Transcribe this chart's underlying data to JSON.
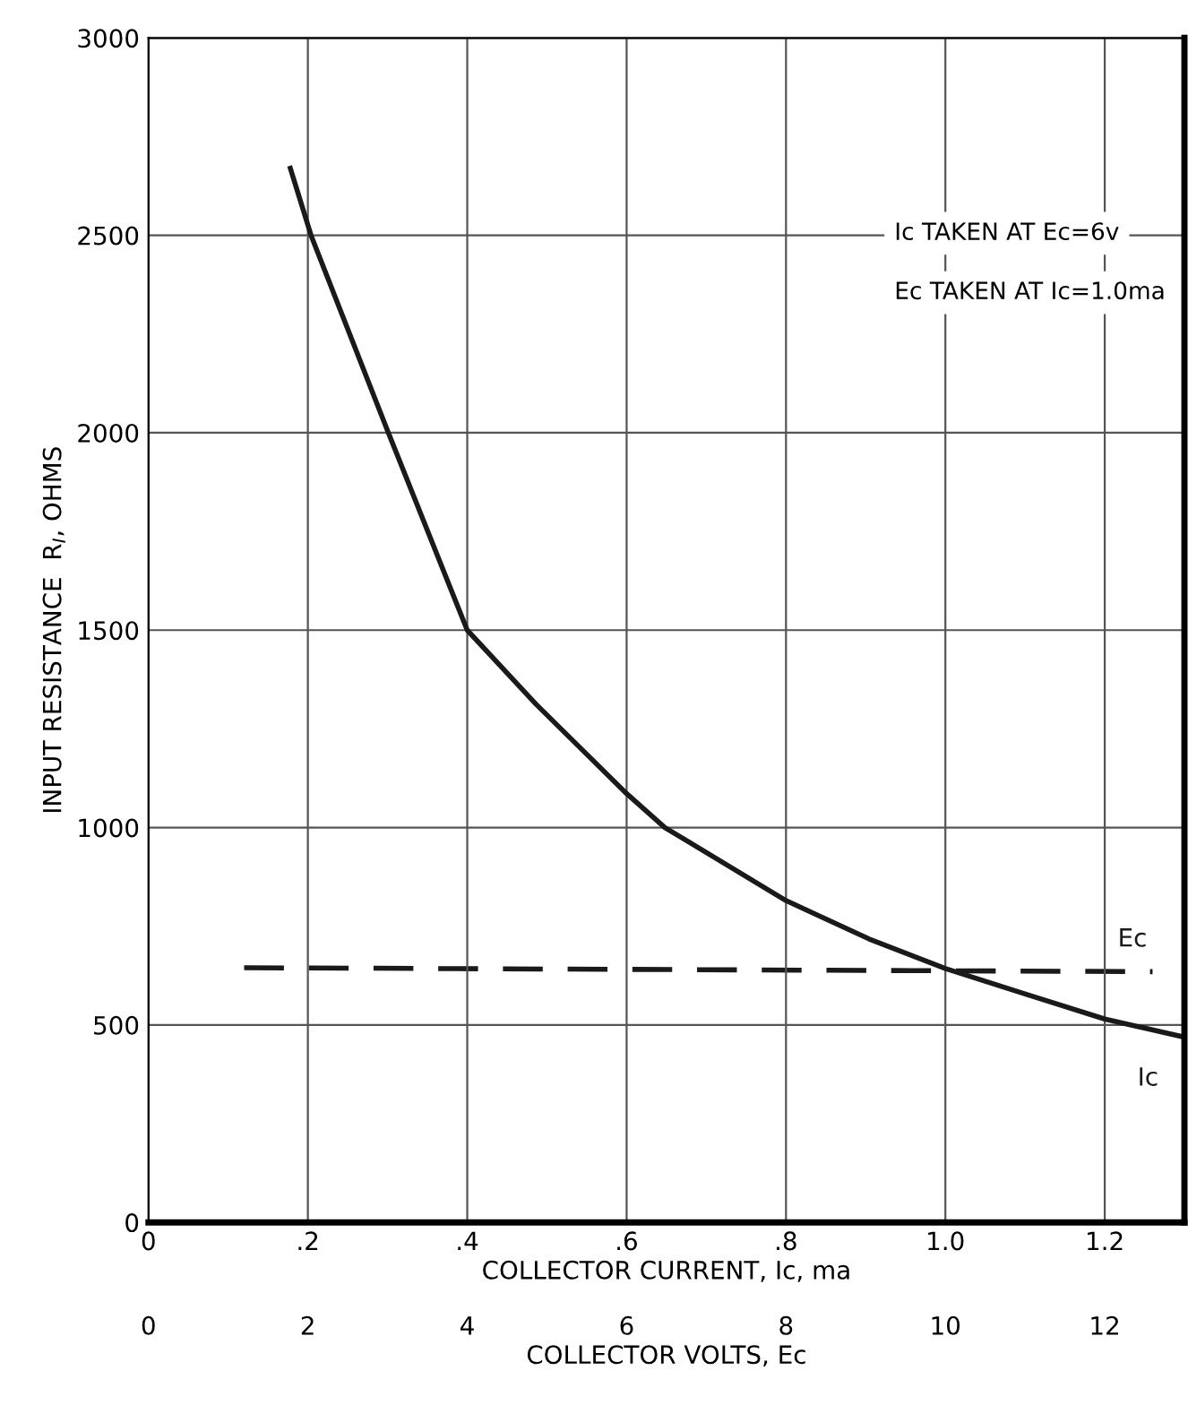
{
  "chart_data": {
    "type": "line",
    "ylabel": "INPUT RESISTANCE  R$_{I}$, OHMS",
    "xlabel": "COLLECTOR CURRENT, Ic, ma",
    "x2label": "COLLECTOR VOLTS, Ec",
    "xlim": [
      0,
      1.3
    ],
    "xticks": [
      0,
      {
        "value": 0.2,
        "label": ".2"
      },
      {
        "value": 0.4,
        "label": ".4"
      },
      {
        "value": 0.6,
        "label": ".6"
      },
      {
        "value": 0.8,
        "label": ".8"
      },
      {
        "value": 1.0,
        "label": "1.0"
      },
      {
        "value": 1.2,
        "label": "1.2"
      }
    ],
    "x2lim": [
      0,
      13
    ],
    "x2ticks": [
      0,
      2,
      4,
      6,
      8,
      10,
      12
    ],
    "ylim": [
      0,
      3000
    ],
    "yticks": [
      0,
      500,
      1000,
      1500,
      2000,
      2500,
      3000
    ],
    "grid": true,
    "legend": false,
    "series": [
      {
        "name": "Ic",
        "color": "#1a1a1a",
        "line_style": "solid",
        "x": [
          0.178,
          0.204,
          0.301,
          0.4,
          0.486,
          0.6,
          0.648,
          0.8,
          0.904,
          1.0,
          1.104,
          1.2,
          1.298
        ],
        "values": [
          2670,
          2500,
          2000,
          1500,
          1313,
          1086,
          1000,
          815,
          718,
          643,
          576,
          515,
          470
        ]
      },
      {
        "name": "Ec",
        "color": "#1a1a1a",
        "line_style": "dashed",
        "axis": "x2",
        "x": [
          1.2,
          12.6
        ],
        "values": [
          645,
          635
        ]
      }
    ],
    "annotations": [
      "Ic TAKEN AT Ec=6v",
      "Ec TAKEN AT Ic=1.0ma"
    ]
  }
}
